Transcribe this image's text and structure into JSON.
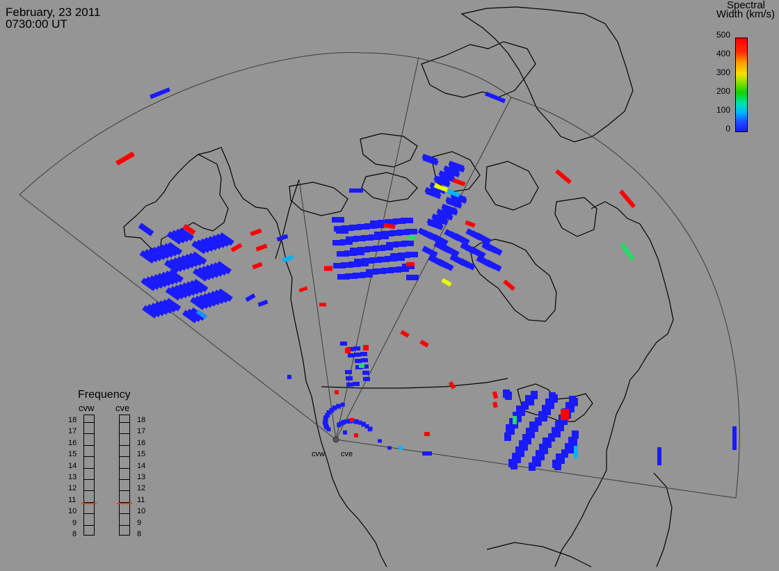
{
  "header": {
    "date": "February, 23 2011",
    "time": "0730:00 UT"
  },
  "colorbar": {
    "title_line1": "Spectral",
    "title_line2": "Width (km/s)",
    "ticks": [
      "500",
      "400",
      "300",
      "200",
      "100",
      "0"
    ]
  },
  "frequency_panel": {
    "title": "Frequency",
    "radars": [
      "cvw",
      "cve"
    ],
    "ticks": [
      "18",
      "17",
      "16",
      "15",
      "14",
      "13",
      "12",
      "11",
      "10",
      "9",
      "8"
    ],
    "current_mhz": {
      "cvw": 10.8,
      "cve": 10.8
    },
    "indicator_color": "#ff3b00"
  },
  "stations": {
    "west": "cvw",
    "east": "cve"
  },
  "colors": {
    "background": "#959595",
    "low_width": "#1a1aff",
    "mid_width": "#1fe060",
    "high_width": "#ff0000"
  }
}
